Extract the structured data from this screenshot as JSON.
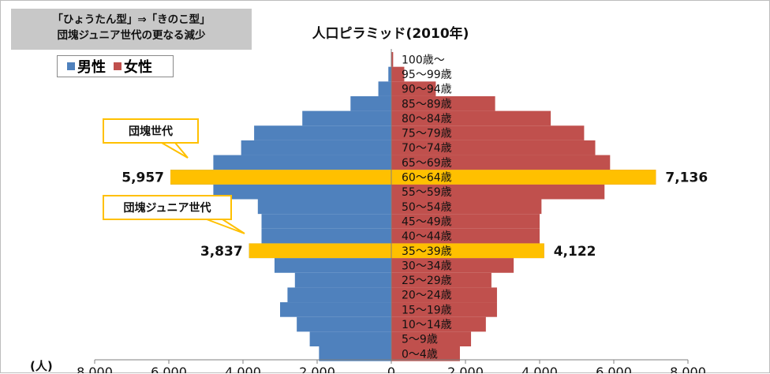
{
  "subtitle_lines": [
    "「ひょうたん型」⇒「きのこ型」",
    "団塊ジュニア世代の更なる減少"
  ],
  "chart_data": {
    "type": "bar",
    "orientation": "horizontal-population-pyramid",
    "title": "人口ピラミッド(2010年)",
    "unit": "(人)",
    "categories": [
      "0〜4歳",
      "5〜9歳",
      "10〜14歳",
      "15〜19歳",
      "20〜24歳",
      "25〜29歳",
      "30〜34歳",
      "35〜39歳",
      "40〜44歳",
      "45〜49歳",
      "50〜54歳",
      "55〜59歳",
      "60〜64歳",
      "65〜69歳",
      "70〜74歳",
      "75〜79歳",
      "80〜84歳",
      "85〜89歳",
      "90〜94歳",
      "95〜99歳",
      "100歳〜"
    ],
    "series": [
      {
        "name": "男性",
        "color": "#4f81bd",
        "values": [
          1950,
          2200,
          2550,
          3000,
          2800,
          2600,
          3150,
          3837,
          3500,
          3500,
          3600,
          4800,
          5957,
          4800,
          4050,
          3700,
          2400,
          1100,
          350,
          80,
          10
        ]
      },
      {
        "name": "女性",
        "color": "#c0504d",
        "values": [
          1850,
          2150,
          2550,
          2850,
          2850,
          2700,
          3300,
          4122,
          4000,
          4000,
          4050,
          5750,
          7136,
          5900,
          5500,
          5200,
          4300,
          2800,
          1200,
          350,
          50
        ]
      }
    ],
    "highlight_color": "#ffc000",
    "highlights": [
      {
        "category": "60〜64歳",
        "male_label": "5,957",
        "female_label": "7,136"
      },
      {
        "category": "35〜39歳",
        "male_label": "3,837",
        "female_label": "4,122"
      }
    ],
    "xlim": [
      -8000,
      8000
    ],
    "x_ticks": [
      "8,000",
      "6,000",
      "4,000",
      "2,000",
      "0",
      "2,000",
      "4,000",
      "6,000",
      "8,000"
    ],
    "legend_position": "top-left"
  },
  "callouts": [
    {
      "text": "団塊世代",
      "category": "60〜64歳"
    },
    {
      "text": "団塊ジュニア世代",
      "category": "35〜39歳"
    }
  ]
}
